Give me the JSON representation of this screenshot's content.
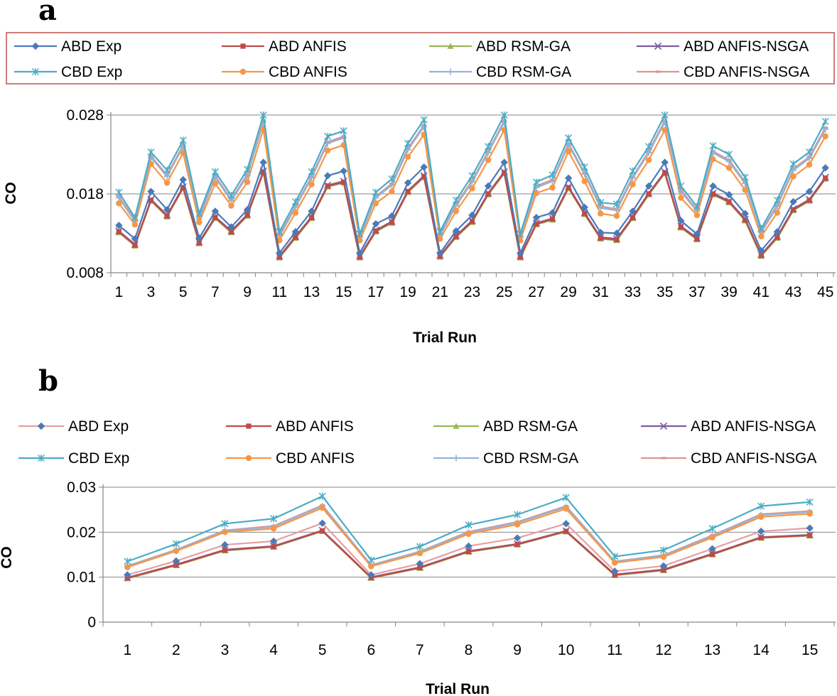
{
  "chart_data": [
    {
      "panel": "a",
      "type": "line",
      "xlabel": "Trial Run",
      "ylabel": "CO",
      "ylim": [
        0.008,
        0.028
      ],
      "yticks": [
        "0.008",
        "0.018",
        "0.028"
      ],
      "ytick_values": [
        0.008,
        0.018,
        0.028
      ],
      "x": [
        1,
        2,
        3,
        4,
        5,
        6,
        7,
        8,
        9,
        10,
        11,
        12,
        13,
        14,
        15,
        16,
        17,
        18,
        19,
        20,
        21,
        22,
        23,
        24,
        25,
        26,
        27,
        28,
        29,
        30,
        31,
        32,
        33,
        34,
        35,
        36,
        37,
        38,
        39,
        40,
        41,
        42,
        43,
        44,
        45
      ],
      "xtick_labels": [
        "1",
        "3",
        "5",
        "7",
        "9",
        "11",
        "13",
        "15",
        "17",
        "19",
        "21",
        "23",
        "25",
        "27",
        "29",
        "31",
        "33",
        "35",
        "37",
        "39",
        "41",
        "43",
        "45"
      ],
      "grid": "horizontal",
      "legend_position": "top",
      "series": [
        {
          "name": "ABD Exp",
          "color": "#4a7ab8",
          "marker": "diamond",
          "values": [
            0.014,
            0.0123,
            0.0183,
            0.016,
            0.0198,
            0.0124,
            0.0158,
            0.0138,
            0.016,
            0.022,
            0.0105,
            0.0132,
            0.0158,
            0.0203,
            0.0209,
            0.0105,
            0.0142,
            0.0152,
            0.0194,
            0.0214,
            0.0105,
            0.0133,
            0.0153,
            0.019,
            0.022,
            0.0105,
            0.015,
            0.0156,
            0.02,
            0.0163,
            0.0131,
            0.013,
            0.0158,
            0.019,
            0.022,
            0.0146,
            0.0129,
            0.019,
            0.0179,
            0.0155,
            0.0108,
            0.0132,
            0.017,
            0.0183,
            0.0213
          ]
        },
        {
          "name": "ABD ANFIS",
          "color": "#be4b48",
          "marker": "square",
          "values": [
            0.0132,
            0.0115,
            0.0172,
            0.0152,
            0.0188,
            0.0118,
            0.015,
            0.0132,
            0.0153,
            0.0208,
            0.01,
            0.0125,
            0.015,
            0.019,
            0.0195,
            0.01,
            0.0133,
            0.0144,
            0.0183,
            0.0202,
            0.0101,
            0.0126,
            0.0145,
            0.018,
            0.0207,
            0.01,
            0.0142,
            0.0148,
            0.0188,
            0.0155,
            0.0124,
            0.0122,
            0.015,
            0.018,
            0.0207,
            0.0138,
            0.0123,
            0.018,
            0.017,
            0.0147,
            0.0102,
            0.0125,
            0.016,
            0.0172,
            0.02
          ]
        },
        {
          "name": "ABD RSM-GA",
          "color": "#98b954",
          "marker": "triangle",
          "values": [
            0.0131,
            0.0114,
            0.0171,
            0.0151,
            0.0187,
            0.0117,
            0.0149,
            0.0131,
            0.0152,
            0.0207,
            0.0099,
            0.0124,
            0.0149,
            0.0189,
            0.0194,
            0.0099,
            0.0132,
            0.0143,
            0.0182,
            0.0201,
            0.01,
            0.0125,
            0.0144,
            0.0179,
            0.0206,
            0.0099,
            0.0141,
            0.0147,
            0.0187,
            0.0154,
            0.0123,
            0.0121,
            0.0149,
            0.0179,
            0.0206,
            0.0137,
            0.0122,
            0.0179,
            0.0169,
            0.0146,
            0.0101,
            0.0124,
            0.0159,
            0.0171,
            0.0199
          ]
        },
        {
          "name": "ABD ANFIS-NSGA",
          "color": "#7e5aa0",
          "marker": "x",
          "values": [
            0.0133,
            0.0116,
            0.0173,
            0.0153,
            0.0189,
            0.0119,
            0.0151,
            0.0133,
            0.0154,
            0.0209,
            0.0101,
            0.0126,
            0.0151,
            0.0191,
            0.0196,
            0.0101,
            0.0134,
            0.0145,
            0.0184,
            0.0203,
            0.0102,
            0.0127,
            0.0146,
            0.0181,
            0.0208,
            0.0101,
            0.0143,
            0.0149,
            0.0189,
            0.0156,
            0.0125,
            0.0123,
            0.0151,
            0.0181,
            0.0208,
            0.0139,
            0.0124,
            0.0181,
            0.0171,
            0.0148,
            0.0103,
            0.0126,
            0.0161,
            0.0173,
            0.0201
          ]
        },
        {
          "name": "CBD Exp",
          "color": "#4bacc6",
          "marker": "asterisk",
          "values": [
            0.0182,
            0.015,
            0.0233,
            0.021,
            0.0248,
            0.0155,
            0.0208,
            0.0178,
            0.0211,
            0.028,
            0.0132,
            0.017,
            0.0208,
            0.0253,
            0.026,
            0.0129,
            0.0182,
            0.0199,
            0.0244,
            0.0274,
            0.0132,
            0.0172,
            0.0203,
            0.024,
            0.028,
            0.0129,
            0.0195,
            0.0204,
            0.0251,
            0.0214,
            0.0169,
            0.0167,
            0.0209,
            0.024,
            0.028,
            0.019,
            0.0164,
            0.0241,
            0.023,
            0.0201,
            0.0136,
            0.0172,
            0.0218,
            0.0233,
            0.0272
          ]
        },
        {
          "name": "CBD ANFIS",
          "color": "#f79646",
          "marker": "circle",
          "values": [
            0.0168,
            0.0141,
            0.0218,
            0.0194,
            0.0232,
            0.0144,
            0.0193,
            0.0165,
            0.0195,
            0.0262,
            0.0121,
            0.0156,
            0.0192,
            0.0235,
            0.0242,
            0.0121,
            0.0168,
            0.0183,
            0.0227,
            0.0255,
            0.0123,
            0.0158,
            0.0187,
            0.0223,
            0.0261,
            0.0121,
            0.0181,
            0.0188,
            0.0234,
            0.0196,
            0.0155,
            0.0152,
            0.0192,
            0.0223,
            0.0261,
            0.0175,
            0.0153,
            0.0224,
            0.0213,
            0.0185,
            0.0126,
            0.0156,
            0.0202,
            0.0217,
            0.0253
          ]
        },
        {
          "name": "CBD RSM-GA",
          "color": "#95b3d7",
          "marker": "plus",
          "values": [
            0.0175,
            0.0145,
            0.0226,
            0.0202,
            0.024,
            0.0148,
            0.0201,
            0.0171,
            0.0203,
            0.0271,
            0.0126,
            0.0163,
            0.02,
            0.0244,
            0.0251,
            0.0125,
            0.0175,
            0.0191,
            0.0236,
            0.0265,
            0.0127,
            0.0165,
            0.0195,
            0.0232,
            0.0271,
            0.0125,
            0.0188,
            0.0196,
            0.0242,
            0.0205,
            0.0162,
            0.0159,
            0.02,
            0.0232,
            0.0271,
            0.0183,
            0.0158,
            0.0232,
            0.0221,
            0.0193,
            0.0131,
            0.0164,
            0.021,
            0.0225,
            0.0262
          ]
        },
        {
          "name": "CBD ANFIS-NSGA",
          "color": "#d99694",
          "marker": "dash",
          "values": [
            0.0177,
            0.0147,
            0.0228,
            0.0204,
            0.0242,
            0.015,
            0.0203,
            0.0173,
            0.0205,
            0.0273,
            0.0128,
            0.0165,
            0.0202,
            0.0246,
            0.0253,
            0.0127,
            0.0177,
            0.0193,
            0.0238,
            0.0267,
            0.0129,
            0.0167,
            0.0197,
            0.0234,
            0.0273,
            0.0127,
            0.019,
            0.0198,
            0.0244,
            0.0207,
            0.0164,
            0.0161,
            0.0202,
            0.0234,
            0.0273,
            0.0185,
            0.016,
            0.0234,
            0.0223,
            0.0195,
            0.0133,
            0.0166,
            0.0212,
            0.0227,
            0.0264
          ]
        }
      ]
    },
    {
      "panel": "b",
      "type": "line",
      "xlabel": "Trial Run",
      "ylabel": "CO",
      "ylim": [
        0,
        0.03
      ],
      "yticks": [
        "0",
        "0.01",
        "0.02",
        "0.03"
      ],
      "ytick_values": [
        0,
        0.01,
        0.02,
        0.03
      ],
      "x": [
        1,
        2,
        3,
        4,
        5,
        6,
        7,
        8,
        9,
        10,
        11,
        12,
        13,
        14,
        15
      ],
      "xtick_labels": [
        "1",
        "2",
        "3",
        "4",
        "5",
        "6",
        "7",
        "8",
        "9",
        "10",
        "11",
        "12",
        "13",
        "14",
        "15"
      ],
      "grid": "horizontal",
      "legend_position": "top",
      "series": [
        {
          "name": "ABD Exp",
          "color": "#4a7ab8",
          "line_color": "#e6a09e",
          "marker": "diamond",
          "values": [
            0.0105,
            0.0136,
            0.0172,
            0.018,
            0.022,
            0.0105,
            0.013,
            0.0169,
            0.0187,
            0.0219,
            0.0113,
            0.0125,
            0.0163,
            0.0202,
            0.0209
          ]
        },
        {
          "name": "ABD ANFIS",
          "color": "#be4b48",
          "marker": "square",
          "values": [
            0.0098,
            0.0127,
            0.016,
            0.0168,
            0.0203,
            0.0099,
            0.0121,
            0.0157,
            0.0173,
            0.0202,
            0.0105,
            0.0116,
            0.0151,
            0.0188,
            0.0193
          ]
        },
        {
          "name": "ABD RSM-GA",
          "color": "#98b954",
          "marker": "triangle",
          "values": [
            0.0097,
            0.0126,
            0.0159,
            0.0167,
            0.0202,
            0.0098,
            0.012,
            0.0156,
            0.0172,
            0.0201,
            0.0104,
            0.0115,
            0.015,
            0.0187,
            0.0192
          ]
        },
        {
          "name": "ABD ANFIS-NSGA",
          "color": "#7e5aa0",
          "marker": "x",
          "values": [
            0.0099,
            0.0128,
            0.0161,
            0.0169,
            0.0204,
            0.01,
            0.0122,
            0.0158,
            0.0174,
            0.0203,
            0.0106,
            0.0117,
            0.0152,
            0.0189,
            0.0194
          ]
        },
        {
          "name": "CBD Exp",
          "color": "#4bacc6",
          "marker": "asterisk",
          "values": [
            0.0135,
            0.0174,
            0.0219,
            0.023,
            0.028,
            0.0138,
            0.0168,
            0.0216,
            0.0239,
            0.0277,
            0.0146,
            0.016,
            0.0208,
            0.0258,
            0.0267
          ]
        },
        {
          "name": "CBD ANFIS",
          "color": "#f79646",
          "marker": "circle",
          "values": [
            0.0122,
            0.0158,
            0.02,
            0.0208,
            0.0254,
            0.0124,
            0.0153,
            0.0196,
            0.0217,
            0.0252,
            0.0132,
            0.0145,
            0.0188,
            0.0234,
            0.0241
          ]
        },
        {
          "name": "CBD RSM-GA",
          "color": "#95b3d7",
          "marker": "plus",
          "values": [
            0.0124,
            0.016,
            0.0203,
            0.0212,
            0.0258,
            0.0126,
            0.0156,
            0.0199,
            0.0221,
            0.0256,
            0.0134,
            0.0148,
            0.0191,
            0.0238,
            0.0245
          ]
        },
        {
          "name": "CBD ANFIS-NSGA",
          "color": "#d99694",
          "marker": "dash",
          "values": [
            0.0125,
            0.0161,
            0.0204,
            0.0214,
            0.026,
            0.0127,
            0.0157,
            0.0201,
            0.0223,
            0.0258,
            0.0135,
            0.0149,
            0.0193,
            0.024,
            0.0247
          ]
        }
      ]
    }
  ]
}
